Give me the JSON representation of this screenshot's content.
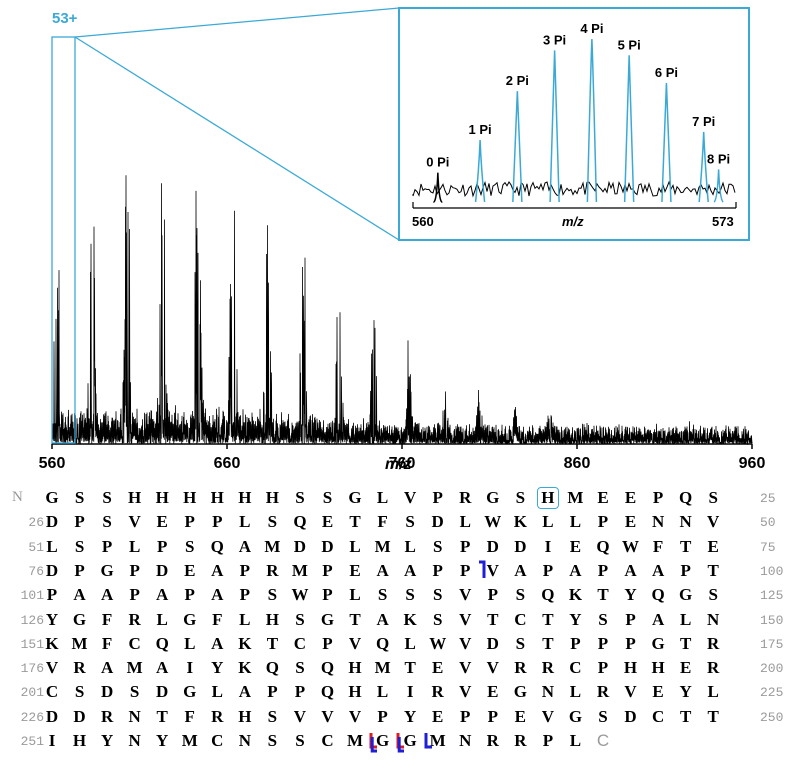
{
  "chart_data": [
    {
      "type": "line",
      "label": "53+",
      "xlabel": "m/z",
      "xlim": [
        560,
        960
      ],
      "xticks": [
        "560",
        "660",
        "760",
        "860",
        "960"
      ],
      "xtick_values": [
        560,
        660,
        760,
        860,
        960
      ],
      "colors": {
        "trace": "#000000",
        "zoom": "#3ba9d6"
      }
    },
    {
      "type": "line",
      "xlabel": "m/z",
      "xlim": [
        560,
        573
      ],
      "xticks": [
        "560",
        "573"
      ],
      "peaks": [
        {
          "label": "0 Pi",
          "x": 561.0,
          "y": 0.18
        },
        {
          "label": "1 Pi",
          "x": 562.7,
          "y": 0.38
        },
        {
          "label": "2 Pi",
          "x": 564.2,
          "y": 0.68
        },
        {
          "label": "3 Pi",
          "x": 565.7,
          "y": 0.93
        },
        {
          "label": "4 Pi",
          "x": 567.2,
          "y": 1.0
        },
        {
          "label": "5 Pi",
          "x": 568.7,
          "y": 0.9
        },
        {
          "label": "6 Pi",
          "x": 570.2,
          "y": 0.73
        },
        {
          "label": "7 Pi",
          "x": 571.7,
          "y": 0.43
        },
        {
          "label": "8 Pi",
          "x": 572.3,
          "y": 0.2
        }
      ],
      "colors": {
        "peaks": "#3ba9d6",
        "baseline": "#000000",
        "frame": "#3ba9d6"
      }
    }
  ],
  "sequence": {
    "n_label": "N",
    "rows": [
      {
        "start": "",
        "end": "25",
        "residues": [
          "G",
          "S",
          "S",
          "H",
          "H",
          "H",
          "H",
          "H",
          "H",
          "S",
          "S",
          "G",
          "L",
          "V",
          "P",
          "R",
          "G",
          "S",
          "H",
          "M",
          "E",
          "E",
          "P",
          "Q",
          "S"
        ]
      },
      {
        "start": "26",
        "end": "50",
        "residues": [
          "D",
          "P",
          "S",
          "V",
          "E",
          "P",
          "P",
          "L",
          "S",
          "Q",
          "E",
          "T",
          "F",
          "S",
          "D",
          "L",
          "W",
          "K",
          "L",
          "L",
          "P",
          "E",
          "N",
          "N",
          "V"
        ]
      },
      {
        "start": "51",
        "end": "75",
        "residues": [
          "L",
          "S",
          "P",
          "L",
          "P",
          "S",
          "Q",
          "A",
          "M",
          "D",
          "D",
          "L",
          "M",
          "L",
          "S",
          "P",
          "D",
          "D",
          "I",
          "E",
          "Q",
          "W",
          "F",
          "T",
          "E"
        ]
      },
      {
        "start": "76",
        "end": "100",
        "residues": [
          "D",
          "P",
          "G",
          "P",
          "D",
          "E",
          "A",
          "P",
          "R",
          "M",
          "P",
          "E",
          "A",
          "A",
          "P",
          "P",
          "V",
          "A",
          "P",
          "A",
          "P",
          "A",
          "A",
          "P",
          "T"
        ]
      },
      {
        "start": "101",
        "end": "125",
        "residues": [
          "P",
          "A",
          "A",
          "P",
          "A",
          "P",
          "A",
          "P",
          "S",
          "W",
          "P",
          "L",
          "S",
          "S",
          "S",
          "V",
          "P",
          "S",
          "Q",
          "K",
          "T",
          "Y",
          "Q",
          "G",
          "S"
        ]
      },
      {
        "start": "126",
        "end": "150",
        "residues": [
          "Y",
          "G",
          "F",
          "R",
          "L",
          "G",
          "F",
          "L",
          "H",
          "S",
          "G",
          "T",
          "A",
          "K",
          "S",
          "V",
          "T",
          "C",
          "T",
          "Y",
          "S",
          "P",
          "A",
          "L",
          "N"
        ]
      },
      {
        "start": "151",
        "end": "175",
        "residues": [
          "K",
          "M",
          "F",
          "C",
          "Q",
          "L",
          "A",
          "K",
          "T",
          "C",
          "P",
          "V",
          "Q",
          "L",
          "W",
          "V",
          "D",
          "S",
          "T",
          "P",
          "P",
          "P",
          "G",
          "T",
          "R"
        ]
      },
      {
        "start": "176",
        "end": "200",
        "residues": [
          "V",
          "R",
          "A",
          "M",
          "A",
          "I",
          "Y",
          "K",
          "Q",
          "S",
          "Q",
          "H",
          "M",
          "T",
          "E",
          "V",
          "V",
          "R",
          "R",
          "C",
          "P",
          "H",
          "H",
          "E",
          "R"
        ]
      },
      {
        "start": "201",
        "end": "225",
        "residues": [
          "C",
          "S",
          "D",
          "S",
          "D",
          "G",
          "L",
          "A",
          "P",
          "P",
          "Q",
          "H",
          "L",
          "I",
          "R",
          "V",
          "E",
          "G",
          "N",
          "L",
          "R",
          "V",
          "E",
          "Y",
          "L"
        ]
      },
      {
        "start": "226",
        "end": "250",
        "residues": [
          "D",
          "D",
          "R",
          "N",
          "T",
          "F",
          "R",
          "H",
          "S",
          "V",
          "V",
          "V",
          "P",
          "Y",
          "E",
          "P",
          "P",
          "E",
          "V",
          "G",
          "S",
          "D",
          "C",
          "T",
          "T"
        ]
      },
      {
        "start": "251",
        "end": "",
        "residues": [
          "I",
          "H",
          "Y",
          "N",
          "Y",
          "M",
          "C",
          "N",
          "S",
          "S",
          "C",
          "M",
          "G",
          "G",
          "M",
          "N",
          "R",
          "R",
          "P",
          "L",
          "C"
        ]
      }
    ],
    "boxed_residue": {
      "row": 0,
      "col": 18
    },
    "c_terminal": {
      "row": 10,
      "col": 20
    },
    "fragment_marks": [
      {
        "row": 3,
        "col": 16,
        "type": "c",
        "color": "#1f1fd6"
      },
      {
        "row": 10,
        "col": 12,
        "type": "z",
        "colors": [
          "#e01b1b",
          "#1f1fd6"
        ]
      },
      {
        "row": 10,
        "col": 13,
        "type": "z",
        "colors": [
          "#e01b1b",
          "#1f1fd6"
        ]
      },
      {
        "row": 10,
        "col": 14,
        "type": "z",
        "colors": [
          "#1f1fd6"
        ]
      }
    ],
    "colors": {
      "box": "#3ba9d6",
      "number": "#9a9a9a"
    }
  }
}
